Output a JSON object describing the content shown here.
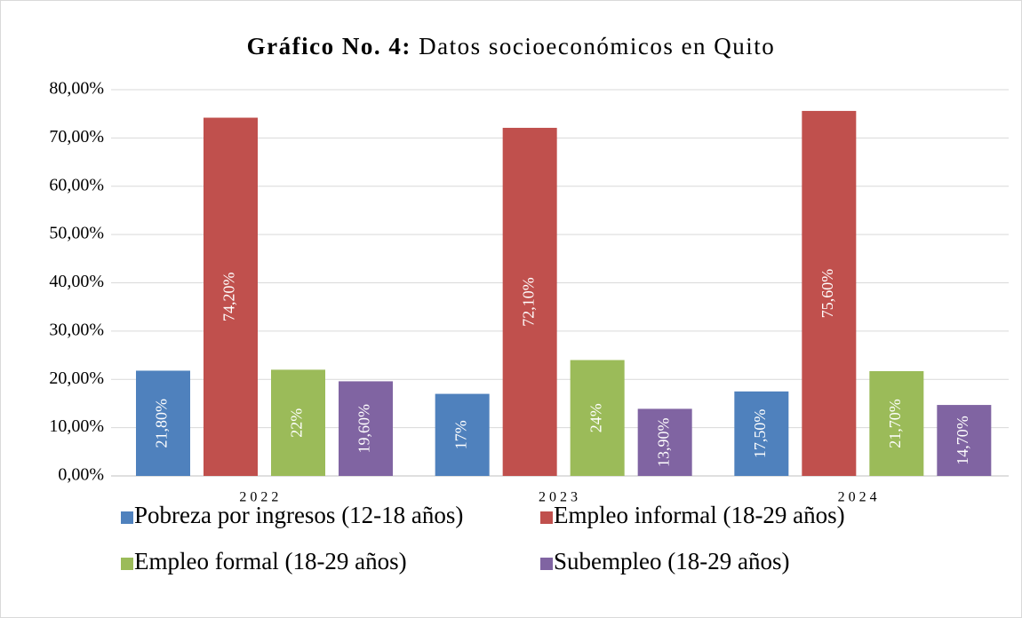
{
  "chart_data": {
    "type": "bar",
    "title": "Gráfico No. 4:",
    "subtitle": "Datos socioeconómicos en Quito",
    "categories": [
      "2022",
      "2023",
      "2024"
    ],
    "series": [
      {
        "name": "Pobreza por ingresos (12-18 años)",
        "color": "#4f81bd",
        "values": [
          21.8,
          17,
          17.5
        ],
        "value_labels": [
          "21,80%",
          "17%",
          "17,50%"
        ]
      },
      {
        "name": "Empleo informal (18-29 años)",
        "color": "#c0504d",
        "values": [
          74.2,
          72.1,
          75.6
        ],
        "value_labels": [
          "74,20%",
          "72,10%",
          "75,60%"
        ]
      },
      {
        "name": "Empleo formal (18-29 años)",
        "color": "#9bbb59",
        "values": [
          22,
          24,
          21.7
        ],
        "value_labels": [
          "22%",
          "24%",
          "21,70%"
        ]
      },
      {
        "name": "Subempleo (18-29 años)",
        "color": "#8064a2",
        "values": [
          19.6,
          13.9,
          14.7
        ],
        "value_labels": [
          "19,60%",
          "13,90%",
          "14,70%"
        ]
      }
    ],
    "ylim": [
      0,
      80
    ],
    "yticks": [
      {
        "value": 0,
        "label": "0,00%"
      },
      {
        "value": 10,
        "label": "10,00%"
      },
      {
        "value": 20,
        "label": "20,00%"
      },
      {
        "value": 30,
        "label": "30,00%"
      },
      {
        "value": 40,
        "label": "40,00%"
      },
      {
        "value": 50,
        "label": "50,00%"
      },
      {
        "value": 60,
        "label": "60,00%"
      },
      {
        "value": 70,
        "label": "70,00%"
      },
      {
        "value": 80,
        "label": "80,00%"
      }
    ],
    "grid": true,
    "legend": "bottom"
  }
}
